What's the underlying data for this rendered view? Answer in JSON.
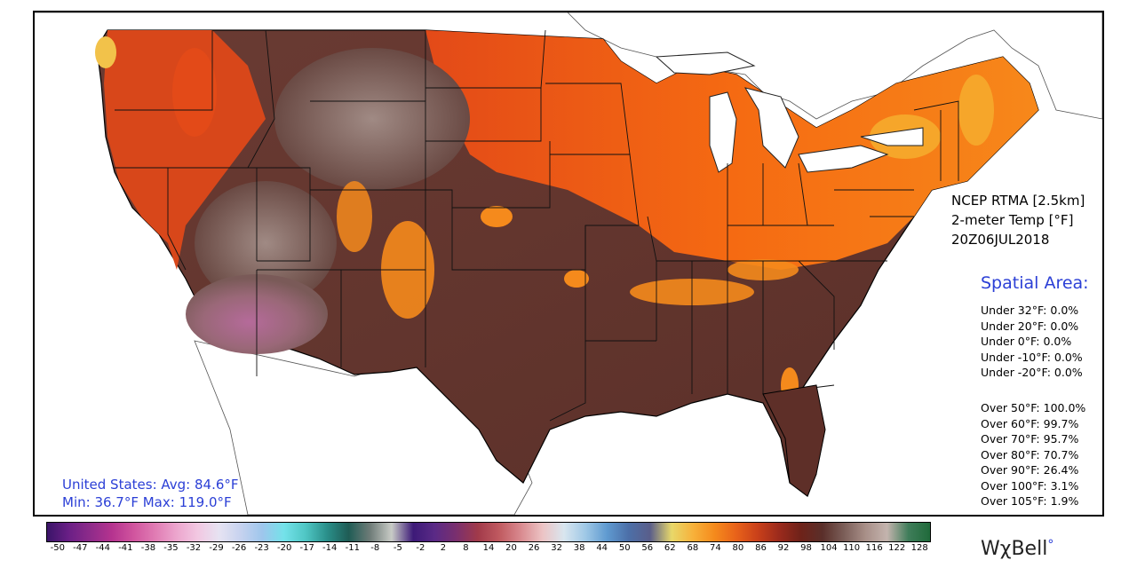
{
  "product": {
    "line1": "NCEP RTMA [2.5km]",
    "line2": "2-meter Temp [°F]",
    "line3": "20Z06JUL2018"
  },
  "spatial_area": {
    "title": "Spatial Area:",
    "under": [
      {
        "label": "Under 32°F:",
        "value": "0.0%"
      },
      {
        "label": "Under 20°F:",
        "value": "0.0%"
      },
      {
        "label": "Under 0°F:",
        "value": "0.0%"
      },
      {
        "label": "Under -10°F:",
        "value": "0.0%"
      },
      {
        "label": "Under -20°F:",
        "value": "0.0%"
      }
    ],
    "over": [
      {
        "label": "Over 50°F:",
        "value": "100.0%"
      },
      {
        "label": "Over 60°F:",
        "value": "99.7%"
      },
      {
        "label": "Over 70°F:",
        "value": "95.7%"
      },
      {
        "label": "Over 80°F:",
        "value": "70.7%"
      },
      {
        "label": "Over 90°F:",
        "value": "26.4%"
      },
      {
        "label": "Over 100°F:",
        "value": "3.1%"
      },
      {
        "label": "Over 105°F:",
        "value": "1.9%"
      }
    ]
  },
  "summary": {
    "line1": "United States: Avg:  84.6°F",
    "line2": "Min:  36.7°F Max: 119.0°F"
  },
  "colorbar": {
    "ticks": [
      "-50",
      "-47",
      "-44",
      "-41",
      "-38",
      "-35",
      "-32",
      "-29",
      "-26",
      "-23",
      "-20",
      "-17",
      "-14",
      "-11",
      "-8",
      "-5",
      "-2",
      "2",
      "8",
      "14",
      "20",
      "26",
      "32",
      "38",
      "44",
      "50",
      "56",
      "62",
      "68",
      "74",
      "80",
      "86",
      "92",
      "98",
      "104",
      "110",
      "116",
      "122",
      "128"
    ],
    "stops": [
      "#3a1468",
      "#6a1f86",
      "#8e2b8a",
      "#b5338f",
      "#d0549e",
      "#e07bb3",
      "#eca5cd",
      "#f2c8e2",
      "#e6e3f2",
      "#c6d2ef",
      "#9ec6ec",
      "#74e2ea",
      "#4fc6c4",
      "#2a8f8a",
      "#1f5c55",
      "#6f7c78",
      "#c8cbc6",
      "#3d1a78",
      "#5a2a86",
      "#7a2f6e",
      "#a13a4a",
      "#c05a60",
      "#d98a8f",
      "#ecc3c4",
      "#d9e6ef",
      "#9fc8e6",
      "#5f9ad0",
      "#4c6fa8",
      "#5a5e8a",
      "#e8d86a",
      "#f7b13a",
      "#f58a1c",
      "#e8621a",
      "#c9401a",
      "#9b2a1c",
      "#6e2219",
      "#5a2f2a",
      "#7b5e58",
      "#a88f88",
      "#c4b4ae",
      "#3f7d5a",
      "#1f6a3a"
    ]
  },
  "logo": "WχBell",
  "colors": {
    "accent_text": "#2b3fd6"
  }
}
